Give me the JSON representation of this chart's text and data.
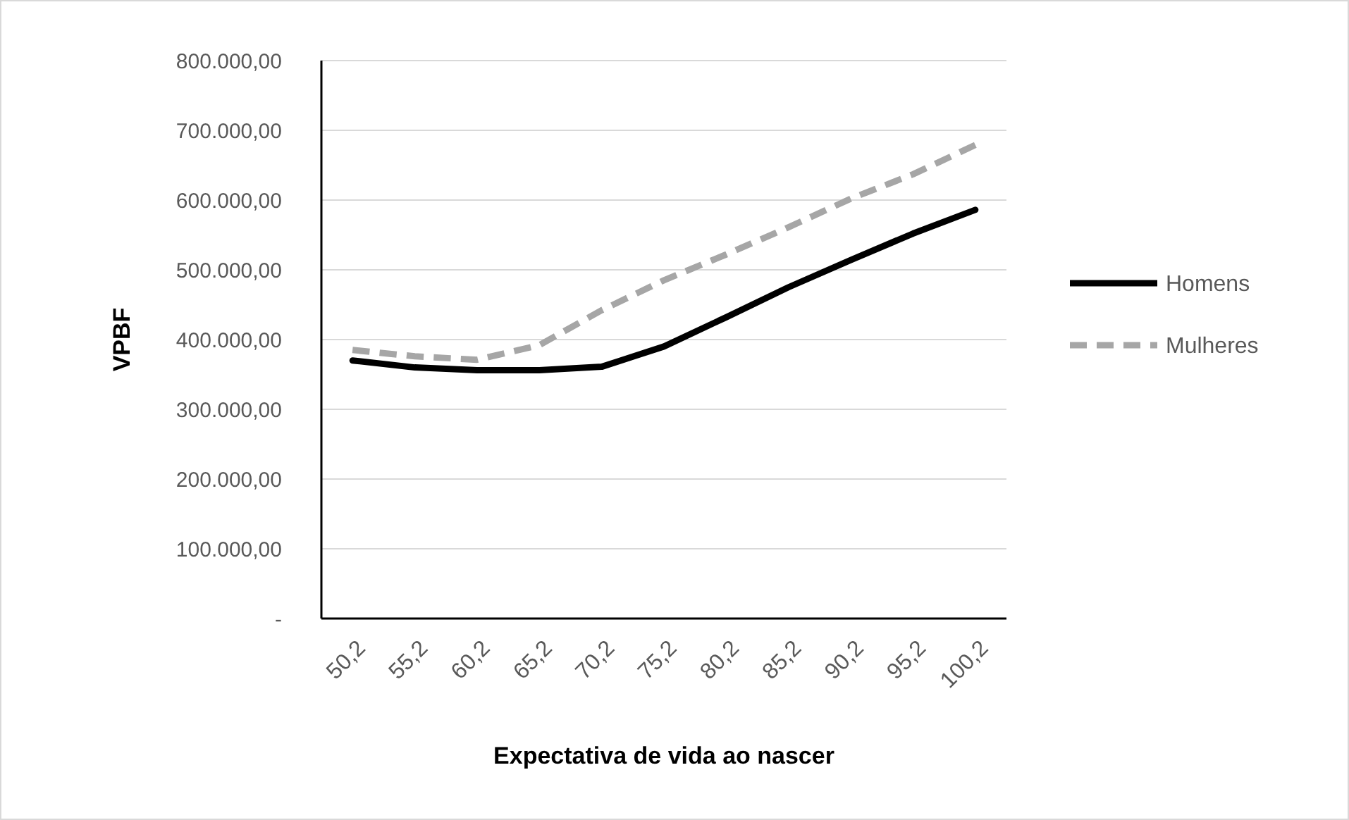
{
  "chart_data": {
    "type": "line",
    "xlabel": "Expectativa de vida ao nascer",
    "ylabel": "VPBF",
    "categories": [
      "50,2",
      "55,2",
      "60,2",
      "65,2",
      "70,2",
      "75,2",
      "80,2",
      "85,2",
      "90,2",
      "95,2",
      "100,2"
    ],
    "series": [
      {
        "name": "Homens",
        "color": "#000000",
        "line_style": "solid",
        "values": [
          370000,
          360000,
          356000,
          356000,
          361000,
          390000,
          432000,
          475000,
          514000,
          552000,
          586000
        ]
      },
      {
        "name": "Mulheres",
        "color": "#a6a6a6",
        "line_style": "dashed",
        "values": [
          385000,
          376000,
          371000,
          392000,
          442000,
          485000,
          522000,
          561000,
          602000,
          637000,
          679000
        ]
      }
    ],
    "ylim": [
      0,
      800000
    ],
    "yticks": [
      {
        "value": 0,
        "label": "-"
      },
      {
        "value": 100000,
        "label": "100.000,00"
      },
      {
        "value": 200000,
        "label": "200.000,00"
      },
      {
        "value": 300000,
        "label": "300.000,00"
      },
      {
        "value": 400000,
        "label": "400.000,00"
      },
      {
        "value": 500000,
        "label": "500.000,00"
      },
      {
        "value": 600000,
        "label": "600.000,00"
      },
      {
        "value": 700000,
        "label": "700.000,00"
      },
      {
        "value": 800000,
        "label": "800.000,00"
      }
    ],
    "grid": "y",
    "legend": "right"
  }
}
